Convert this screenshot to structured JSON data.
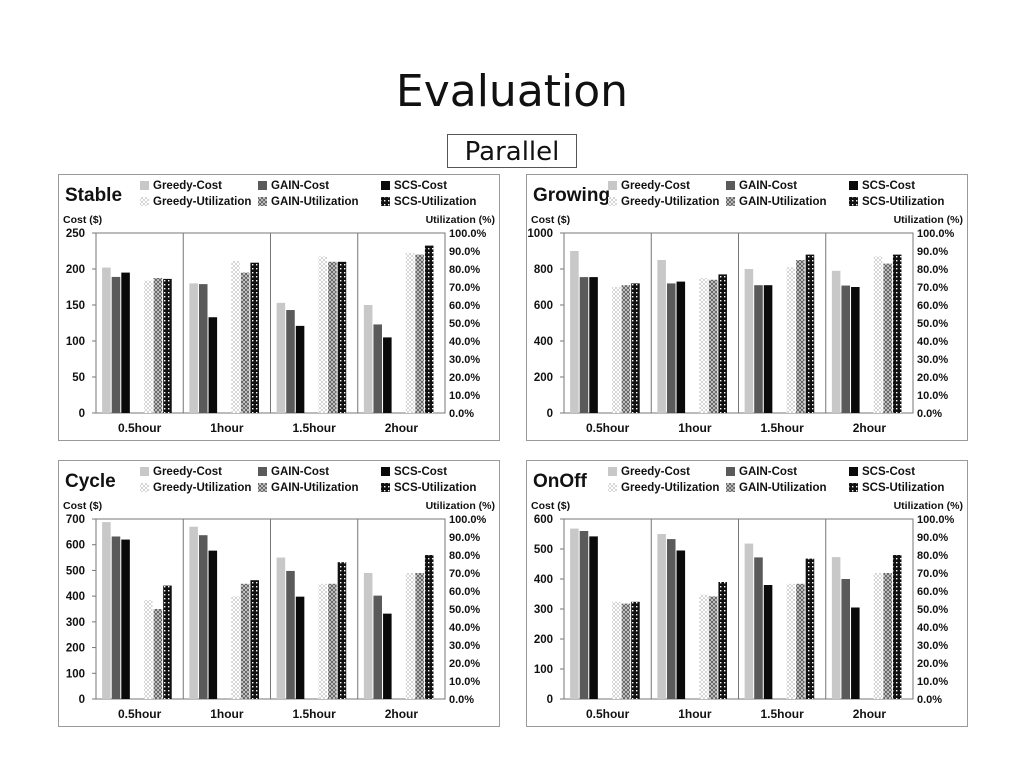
{
  "slide": {
    "title": "Evaluation",
    "subtitle": "Parallel"
  },
  "colors": {
    "greedy_cost": "#c8c8c8",
    "gain_cost": "#5a5a5a",
    "scs_cost": "#0a0a0a",
    "greedy_utilization": "#d6d6d6",
    "gain_utilization": "#6a6a6a",
    "scs_utilization": "#111111"
  },
  "chart_data": [
    {
      "type": "bar",
      "title": "Stable",
      "categories": [
        "0.5hour",
        "1hour",
        "1.5hour",
        "2hour"
      ],
      "ylabel": "Cost ($)",
      "y2label": "Utilization (%)",
      "ylim": [
        0,
        250
      ],
      "yticks": [
        "0",
        "50",
        "100",
        "150",
        "200",
        "250"
      ],
      "y2lim": [
        0,
        100
      ],
      "y2ticks": [
        "0.0%",
        "10.0%",
        "20.0%",
        "30.0%",
        "40.0%",
        "50.0%",
        "60.0%",
        "70.0%",
        "80.0%",
        "90.0%",
        "100.0%"
      ],
      "grid": "vertical separators",
      "legend": "top",
      "series": [
        {
          "name": "Greedy-Cost",
          "axis": "left",
          "values": [
            202,
            180,
            153,
            150
          ]
        },
        {
          "name": "GAIN-Cost",
          "axis": "left",
          "values": [
            189,
            179,
            143,
            123
          ]
        },
        {
          "name": "SCS-Cost",
          "axis": "left",
          "values": [
            195,
            133,
            121,
            105
          ]
        },
        {
          "name": "Greedy-Utilization",
          "axis": "right",
          "values": [
            73.5,
            84.5,
            87,
            89
          ]
        },
        {
          "name": "GAIN-Utilization",
          "axis": "right",
          "values": [
            75,
            78,
            84,
            88
          ]
        },
        {
          "name": "SCS-Utilization",
          "axis": "right",
          "values": [
            74.5,
            83.5,
            84,
            93
          ]
        }
      ]
    },
    {
      "type": "bar",
      "title": "Growing",
      "categories": [
        "0.5hour",
        "1hour",
        "1.5hour",
        "2hour"
      ],
      "ylabel": "Cost ($)",
      "y2label": "Utilization (%)",
      "ylim": [
        0,
        1000
      ],
      "yticks": [
        "0",
        "200",
        "400",
        "600",
        "800",
        "1000"
      ],
      "y2lim": [
        0,
        100
      ],
      "y2ticks": [
        "0.0%",
        "10.0%",
        "20.0%",
        "30.0%",
        "40.0%",
        "50.0%",
        "60.0%",
        "70.0%",
        "80.0%",
        "90.0%",
        "100.0%"
      ],
      "grid": "vertical separators",
      "legend": "top",
      "series": [
        {
          "name": "Greedy-Cost",
          "axis": "left",
          "values": [
            900,
            850,
            800,
            790
          ]
        },
        {
          "name": "GAIN-Cost",
          "axis": "left",
          "values": [
            755,
            720,
            710,
            708
          ]
        },
        {
          "name": "SCS-Cost",
          "axis": "left",
          "values": [
            755,
            730,
            710,
            700
          ]
        },
        {
          "name": "Greedy-Utilization",
          "axis": "right",
          "values": [
            70,
            75,
            81,
            87
          ]
        },
        {
          "name": "GAIN-Utilization",
          "axis": "right",
          "values": [
            71,
            74,
            85,
            83
          ]
        },
        {
          "name": "SCS-Utilization",
          "axis": "right",
          "values": [
            72,
            77,
            88,
            88
          ]
        }
      ]
    },
    {
      "type": "bar",
      "title": "Cycle",
      "categories": [
        "0.5hour",
        "1hour",
        "1.5hour",
        "2hour"
      ],
      "ylabel": "Cost ($)",
      "y2label": "Utilization (%)",
      "ylim": [
        0,
        700
      ],
      "yticks": [
        "0",
        "100",
        "200",
        "300",
        "400",
        "500",
        "600",
        "700"
      ],
      "y2lim": [
        0,
        100
      ],
      "y2ticks": [
        "0.0%",
        "10.0%",
        "20.0%",
        "30.0%",
        "40.0%",
        "50.0%",
        "60.0%",
        "70.0%",
        "80.0%",
        "90.0%",
        "100.0%"
      ],
      "grid": "vertical separators",
      "legend": "top",
      "series": [
        {
          "name": "Greedy-Cost",
          "axis": "left",
          "values": [
            688,
            670,
            550,
            490
          ]
        },
        {
          "name": "GAIN-Cost",
          "axis": "left",
          "values": [
            632,
            637,
            498,
            402
          ]
        },
        {
          "name": "SCS-Cost",
          "axis": "left",
          "values": [
            620,
            577,
            398,
            332
          ]
        },
        {
          "name": "Greedy-Utilization",
          "axis": "right",
          "values": [
            55,
            57,
            64,
            70
          ]
        },
        {
          "name": "GAIN-Utilization",
          "axis": "right",
          "values": [
            50,
            64,
            64,
            70
          ]
        },
        {
          "name": "SCS-Utilization",
          "axis": "right",
          "values": [
            63,
            66,
            76,
            80
          ]
        }
      ]
    },
    {
      "type": "bar",
      "title": "OnOff",
      "categories": [
        "0.5hour",
        "1hour",
        "1.5hour",
        "2hour"
      ],
      "ylabel": "Cost ($)",
      "y2label": "Utilization (%)",
      "ylim": [
        0,
        600
      ],
      "yticks": [
        "0",
        "100",
        "200",
        "300",
        "400",
        "500",
        "600"
      ],
      "y2lim": [
        0,
        100
      ],
      "y2ticks": [
        "0.0%",
        "10.0%",
        "20.0%",
        "30.0%",
        "40.0%",
        "50.0%",
        "60.0%",
        "70.0%",
        "80.0%",
        "90.0%",
        "100.0%"
      ],
      "grid": "vertical separators",
      "legend": "top",
      "series": [
        {
          "name": "Greedy-Cost",
          "axis": "left",
          "values": [
            568,
            550,
            518,
            473
          ]
        },
        {
          "name": "GAIN-Cost",
          "axis": "left",
          "values": [
            560,
            533,
            472,
            400
          ]
        },
        {
          "name": "SCS-Cost",
          "axis": "left",
          "values": [
            542,
            495,
            380,
            305
          ]
        },
        {
          "name": "Greedy-Utilization",
          "axis": "right",
          "values": [
            54,
            58,
            64,
            70
          ]
        },
        {
          "name": "GAIN-Utilization",
          "axis": "right",
          "values": [
            53,
            57,
            64,
            70
          ]
        },
        {
          "name": "SCS-Utilization",
          "axis": "right",
          "values": [
            54,
            65,
            78,
            80
          ]
        }
      ]
    }
  ]
}
